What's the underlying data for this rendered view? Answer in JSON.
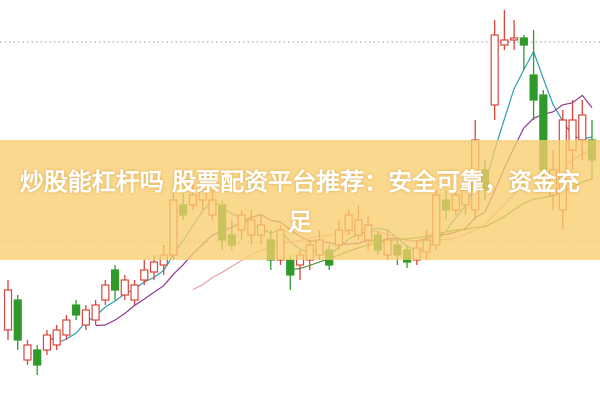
{
  "title": "炒股能杠杆吗 股票配资平台推荐：安全可靠，资金充足",
  "colors": {
    "up": "#d9453c",
    "down": "#2f9a2a",
    "banner": "#f9ce6e",
    "grid": "#999999",
    "ma_lines": [
      "#2a9fb0",
      "#8e3a8e",
      "#e8a0a8",
      "#4f9a3a"
    ]
  },
  "chart_data": {
    "type": "candlestick",
    "grid": "horizontal dotted",
    "ylim": [
      0,
      40
    ],
    "gridlines": [
      35.8,
      25.8,
      15.8
    ],
    "moving_averages": [
      5,
      10,
      20,
      30
    ],
    "candles": [
      [
        7,
        11,
        12,
        6
      ],
      [
        10,
        6,
        10.5,
        5
      ],
      [
        4,
        5.5,
        6,
        3.5
      ],
      [
        5,
        3.5,
        5.5,
        2.5
      ],
      [
        5,
        6.5,
        7,
        4.5
      ],
      [
        5.5,
        7,
        7.5,
        5
      ],
      [
        6.5,
        8,
        8.5,
        6
      ],
      [
        9.5,
        8.5,
        10,
        8
      ],
      [
        7.5,
        9,
        9.5,
        7
      ],
      [
        8,
        9.5,
        10,
        7.5
      ],
      [
        10,
        11.5,
        12,
        9.5
      ],
      [
        13,
        11,
        13.5,
        10
      ],
      [
        10.5,
        12,
        12.5,
        10
      ],
      [
        10,
        11.5,
        12,
        9.5
      ],
      [
        12,
        13,
        14,
        11.5
      ],
      [
        12.8,
        13.8,
        14.5,
        12
      ],
      [
        13.5,
        14.5,
        15.5,
        12.5
      ],
      [
        14.5,
        20,
        21,
        14
      ],
      [
        19.5,
        18.5,
        21,
        18
      ],
      [
        19.5,
        20.5,
        21.5,
        19
      ],
      [
        20,
        21,
        22,
        19
      ],
      [
        18.5,
        20,
        21,
        18
      ],
      [
        19.5,
        16,
        20,
        15
      ],
      [
        16.5,
        15.5,
        18,
        15
      ],
      [
        17,
        18.5,
        19,
        16
      ],
      [
        16.5,
        18,
        19,
        15.5
      ],
      [
        16.5,
        17.5,
        18.5,
        15.5
      ],
      [
        16,
        14,
        17,
        13
      ],
      [
        14,
        17,
        17.5,
        13.5
      ],
      [
        14,
        12.5,
        14.5,
        11
      ],
      [
        13.5,
        14.5,
        15,
        12
      ],
      [
        14,
        15.5,
        16,
        13
      ],
      [
        14.5,
        16,
        17,
        14
      ],
      [
        15,
        13.5,
        15.5,
        13
      ],
      [
        15.5,
        17,
        18,
        15
      ],
      [
        17,
        18.5,
        19,
        16.5
      ],
      [
        16.5,
        18,
        19.5,
        16
      ],
      [
        16,
        17.5,
        18.5,
        15
      ],
      [
        16.5,
        15,
        17,
        14.5
      ],
      [
        14.5,
        16,
        17,
        14
      ],
      [
        15.5,
        14.5,
        16,
        13.5
      ],
      [
        15,
        13.8,
        15.5,
        13.2
      ],
      [
        14,
        15.2,
        16,
        13.5
      ],
      [
        14.8,
        16,
        17,
        14
      ],
      [
        15.5,
        20.5,
        21,
        15
      ],
      [
        20,
        19,
        21,
        18
      ],
      [
        19,
        20.5,
        21,
        18.5
      ],
      [
        19.5,
        21,
        22,
        18.5
      ],
      [
        19,
        26,
        28,
        18
      ],
      [
        23,
        21,
        24,
        20
      ],
      [
        29.5,
        36.5,
        38,
        28
      ],
      [
        35.5,
        36,
        39,
        35
      ],
      [
        36,
        36.2,
        38,
        35
      ],
      [
        36.2,
        35.5,
        36.5,
        33
      ],
      [
        32.5,
        30,
        37,
        28
      ],
      [
        30.5,
        23,
        31,
        21
      ],
      [
        20.5,
        23,
        25,
        19
      ],
      [
        19,
        28,
        29,
        17
      ],
      [
        25,
        28,
        30,
        23
      ],
      [
        26,
        28.5,
        30,
        24
      ],
      [
        26,
        24,
        28,
        22
      ]
    ]
  }
}
